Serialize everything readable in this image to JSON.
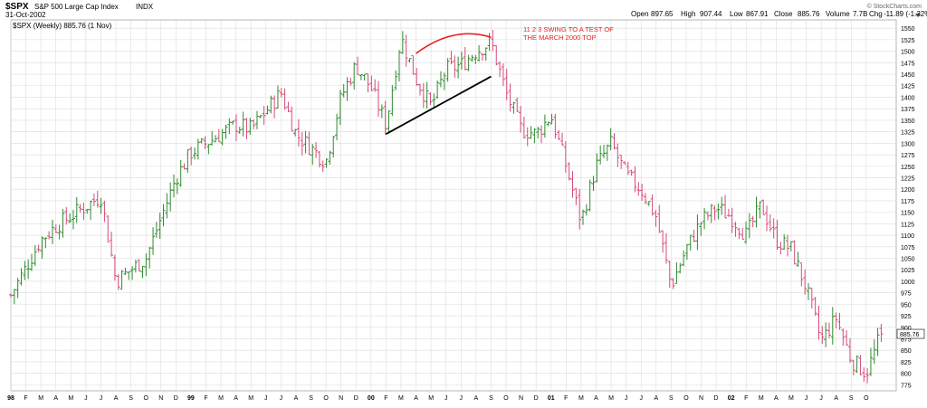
{
  "header": {
    "symbol": "$SPX",
    "name": "S&P 500 Large Cap Index",
    "exchange": "INDX",
    "date": "31-Oct-2002",
    "series_label": "$SPX (Weekly) 885.76 (1 Nov)",
    "watermark": "© StockCharts.com",
    "open_label": "Open",
    "open_value": "897.65",
    "high_label": "High",
    "high_value": "907.44",
    "low_label": "Low",
    "low_value": "867.91",
    "close_label": "Close",
    "close_value": "885.76",
    "volume_label": "Volume",
    "volume_value": "7.7B",
    "chg_label": "Chg",
    "chg_value": "-11.89 (-1.32%)"
  },
  "annotation": {
    "line1": "11 2 3 SWING TO A TEST OF",
    "line2": "THE MARCH 2000 TOP",
    "color": "#e8221f"
  },
  "colors": {
    "up": "#2e8b2e",
    "down": "#d64a7a",
    "grid": "#dcdcdc",
    "trendline": "#000000",
    "arc": "#e8221f"
  },
  "chart_data": {
    "type": "ohlc-bar",
    "interval": "weekly",
    "start": "1998-01",
    "end": "2002-11-01",
    "last_value": "885.76",
    "ylim": [
      762,
      1568
    ],
    "y_ticks": [
      "775",
      "800",
      "825",
      "850",
      "875",
      "900",
      "925",
      "950",
      "975",
      "1000",
      "1025",
      "1050",
      "1075",
      "1100",
      "1125",
      "1150",
      "1175",
      "1200",
      "1225",
      "1250",
      "1275",
      "1300",
      "1325",
      "1350",
      "1375",
      "1400",
      "1425",
      "1450",
      "1475",
      "1500",
      "1525",
      "1550"
    ],
    "x_ticks": [
      "98",
      "F",
      "M",
      "A",
      "M",
      "J",
      "J",
      "A",
      "S",
      "O",
      "N",
      "D",
      "99",
      "F",
      "M",
      "A",
      "M",
      "J",
      "J",
      "A",
      "S",
      "O",
      "N",
      "D",
      "00",
      "F",
      "M",
      "A",
      "M",
      "J",
      "J",
      "A",
      "S",
      "O",
      "N",
      "D",
      "01",
      "F",
      "M",
      "A",
      "M",
      "J",
      "J",
      "A",
      "S",
      "O",
      "N",
      "D",
      "02",
      "F",
      "M",
      "A",
      "M",
      "J",
      "J",
      "A",
      "S",
      "O"
    ],
    "weekly_close_anchors": [
      [
        "1998-01",
        970
      ],
      [
        "1998-03",
        1090
      ],
      [
        "1998-04",
        1120
      ],
      [
        "1998-07",
        1185
      ],
      [
        "1998-08",
        1000
      ],
      [
        "1998-10",
        1050
      ],
      [
        "1998-12",
        1225
      ],
      [
        "1999-01",
        1280
      ],
      [
        "1999-04",
        1340
      ],
      [
        "1999-05",
        1330
      ],
      [
        "1999-07",
        1410
      ],
      [
        "1999-08",
        1320
      ],
      [
        "1999-10",
        1260
      ],
      [
        "1999-11",
        1400
      ],
      [
        "1999-12",
        1470
      ],
      [
        "2000-01",
        1420
      ],
      [
        "2000-02",
        1340
      ],
      [
        "2000-03",
        1530
      ],
      [
        "2000-04",
        1440
      ],
      [
        "2000-05",
        1380
      ],
      [
        "2000-06",
        1460
      ],
      [
        "2000-07",
        1470
      ],
      [
        "2000-08",
        1500
      ],
      [
        "2000-09",
        1520
      ],
      [
        "2000-10",
        1410
      ],
      [
        "2000-11",
        1330
      ],
      [
        "2000-12",
        1320
      ],
      [
        "2001-01",
        1360
      ],
      [
        "2001-02",
        1250
      ],
      [
        "2001-03",
        1130
      ],
      [
        "2001-04",
        1250
      ],
      [
        "2001-05",
        1300
      ],
      [
        "2001-06",
        1230
      ],
      [
        "2001-07",
        1200
      ],
      [
        "2001-08",
        1140
      ],
      [
        "2001-09",
        990
      ],
      [
        "2001-10",
        1070
      ],
      [
        "2001-11",
        1130
      ],
      [
        "2001-12",
        1160
      ],
      [
        "2002-01",
        1140
      ],
      [
        "2002-02",
        1100
      ],
      [
        "2002-03",
        1165
      ],
      [
        "2002-04",
        1090
      ],
      [
        "2002-05",
        1070
      ],
      [
        "2002-06",
        985
      ],
      [
        "2002-07",
        870
      ],
      [
        "2002-08",
        920
      ],
      [
        "2002-09",
        830
      ],
      [
        "2002-10",
        800
      ],
      [
        "2002-11-01",
        886
      ]
    ],
    "trendline": {
      "from": [
        "2000-02",
        1320
      ],
      "to": [
        "2000-09",
        1445
      ]
    },
    "arc": {
      "from": [
        "2000-04",
        1495
      ],
      "to": [
        "2000-09",
        1530
      ],
      "peak": 1555
    }
  }
}
